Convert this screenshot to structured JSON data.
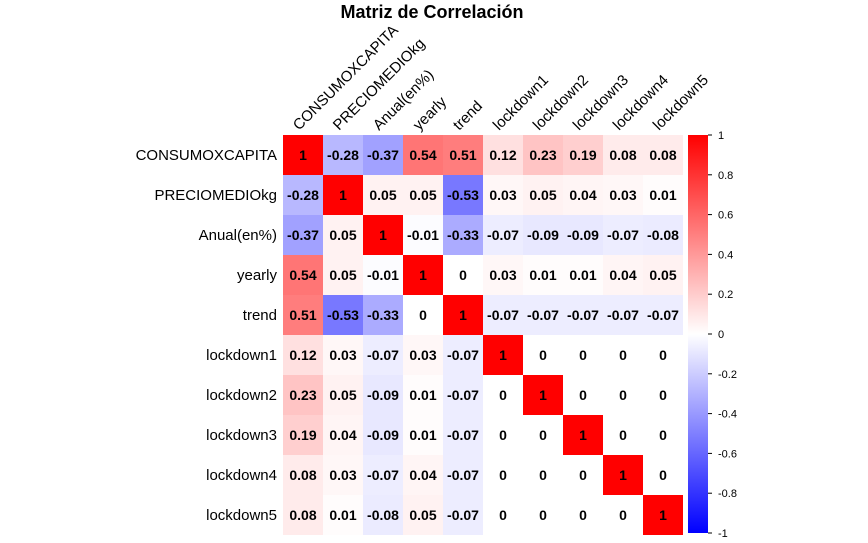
{
  "chart_data": {
    "type": "heatmap",
    "title": "Matriz de Correlación",
    "variables": [
      "CONSUMOXCAPITA",
      "PRECIOMEDIOkg",
      "Anual(en%)",
      "yearly",
      "trend",
      "lockdown1",
      "lockdown2",
      "lockdown3",
      "lockdown4",
      "lockdown5"
    ],
    "matrix": [
      [
        1,
        -0.28,
        -0.37,
        0.54,
        0.51,
        0.12,
        0.23,
        0.19,
        0.08,
        0.08
      ],
      [
        -0.28,
        1,
        0.05,
        0.05,
        -0.53,
        0.03,
        0.05,
        0.04,
        0.03,
        0.01
      ],
      [
        -0.37,
        0.05,
        1,
        -0.01,
        -0.33,
        -0.07,
        -0.09,
        -0.09,
        -0.07,
        -0.08
      ],
      [
        0.54,
        0.05,
        -0.01,
        1,
        0,
        0.03,
        0.01,
        0.01,
        0.04,
        0.05
      ],
      [
        0.51,
        -0.53,
        -0.33,
        0,
        1,
        -0.07,
        -0.07,
        -0.07,
        -0.07,
        -0.07
      ],
      [
        0.12,
        0.03,
        -0.07,
        0.03,
        -0.07,
        1,
        0,
        0,
        0,
        0
      ],
      [
        0.23,
        0.05,
        -0.09,
        0.01,
        -0.07,
        0,
        1,
        0,
        0,
        0
      ],
      [
        0.19,
        0.04,
        -0.09,
        0.01,
        -0.07,
        0,
        0,
        1,
        0,
        0
      ],
      [
        0.08,
        0.03,
        -0.07,
        0.04,
        -0.07,
        0,
        0,
        0,
        1,
        0
      ],
      [
        0.08,
        0.01,
        -0.08,
        0.05,
        -0.07,
        0,
        0,
        0,
        0,
        1
      ]
    ],
    "colorbar": {
      "range": [
        -1,
        1
      ],
      "ticks": [
        "1",
        "0.8",
        "0.6",
        "0.4",
        "0.2",
        "0",
        "-0.2",
        "-0.4",
        "-0.6",
        "-0.8",
        "-1"
      ],
      "colors": {
        "negative": "#0000ff",
        "zero": "#ffffff",
        "positive": "#ff0000"
      }
    }
  }
}
